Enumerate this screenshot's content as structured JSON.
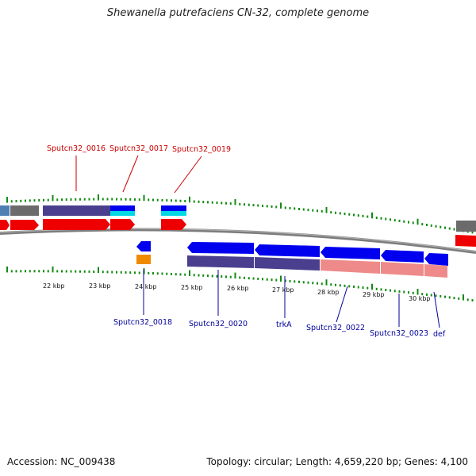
{
  "title": "Shewanella putrefaciens CN-32, complete genome",
  "footer": {
    "accession": "Accession: NC_009438",
    "stats": "Topology: circular; Length: 4,659,220 bp; Genes: 4,100"
  },
  "colors": {
    "upper_label": "#cc0000",
    "lower_label": "#00009a",
    "tick": "#128a12",
    "backbone": "#7d7d7d"
  },
  "ruler": [
    "22 kbp",
    "23 kbp",
    "24 kbp",
    "25 kbp",
    "26 kbp",
    "27 kbp",
    "28 kbp",
    "29 kbp",
    "30 kbp"
  ],
  "upper_labels": [
    "Sputcn32_0016",
    "Sputcn32_0017",
    "Sputcn32_0019"
  ],
  "lower_labels": [
    "Sputcn32_0018",
    "Sputcn32_0020",
    "trkA",
    "Sputcn32_0022",
    "Sputcn32_0023",
    "def"
  ]
}
